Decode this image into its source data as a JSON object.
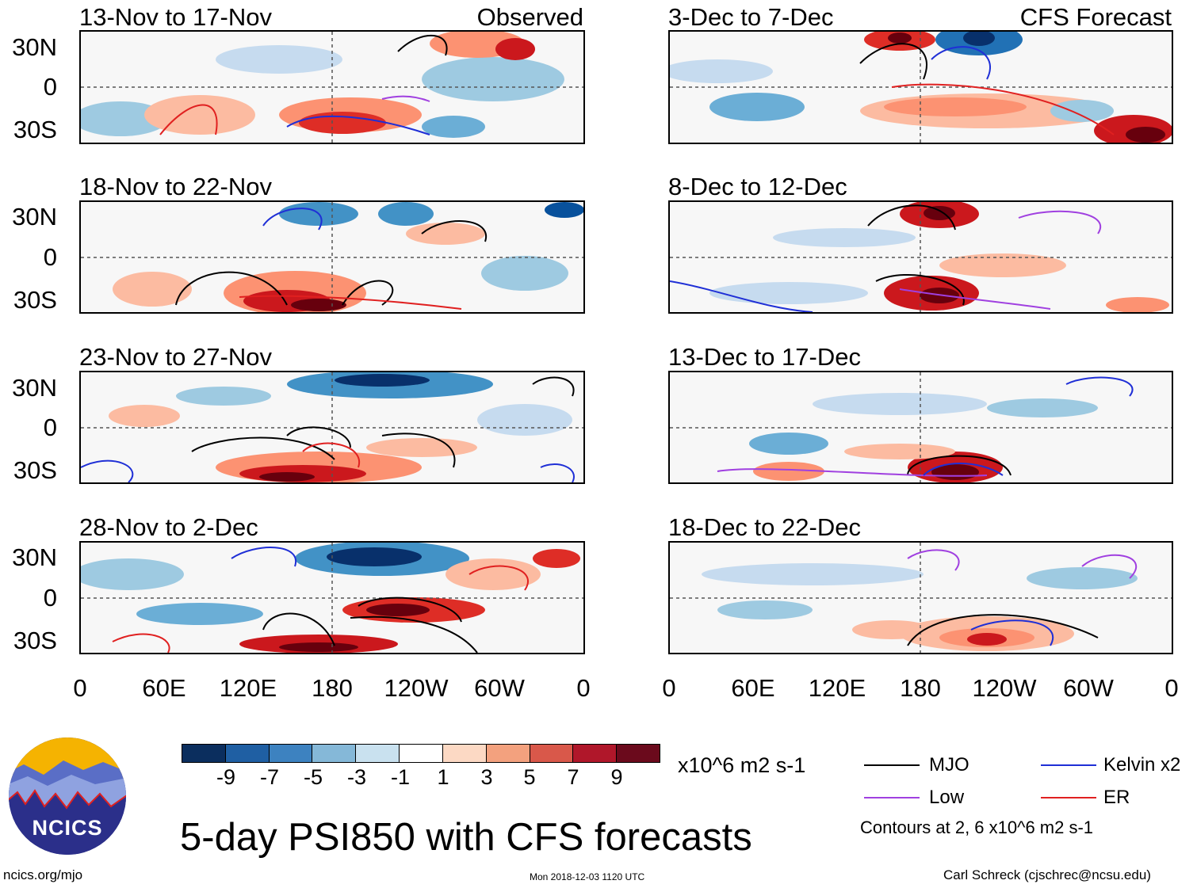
{
  "header": {
    "observed_label": "Observed",
    "forecast_label": "CFS Forecast"
  },
  "panels_left": [
    {
      "title": "13-Nov to 17-Nov"
    },
    {
      "title": "18-Nov to 22-Nov"
    },
    {
      "title": "23-Nov to 27-Nov"
    },
    {
      "title": "28-Nov to 2-Dec"
    }
  ],
  "panels_right": [
    {
      "title": "3-Dec to 7-Dec"
    },
    {
      "title": "8-Dec to 12-Dec"
    },
    {
      "title": "13-Dec to 17-Dec"
    },
    {
      "title": "18-Dec to 22-Dec"
    }
  ],
  "y_axis": {
    "ticks": [
      "30N",
      "0",
      "30S"
    ]
  },
  "x_axis": {
    "ticks": [
      "0",
      "60E",
      "120E",
      "180",
      "120W",
      "60W",
      "0"
    ]
  },
  "colorbar": {
    "labels": [
      "-9",
      "-7",
      "-5",
      "-3",
      "-1",
      "1",
      "3",
      "5",
      "7",
      "9"
    ],
    "colors": [
      "#0b2e5e",
      "#1f5fa3",
      "#3d82c0",
      "#85b8d8",
      "#c9e1ef",
      "#ffffff",
      "#fcd9c4",
      "#f3a17e",
      "#d9584a",
      "#b0172a",
      "#6b0a1c"
    ],
    "units": "x10^6 m2 s-1"
  },
  "legend": {
    "items": [
      {
        "label": "MJO",
        "color": "#000000"
      },
      {
        "label": "Kelvin x2",
        "color": "#1f2fd6"
      },
      {
        "label": "Low",
        "color": "#a040e0"
      },
      {
        "label": "ER",
        "color": "#e02020"
      }
    ],
    "contours_note": "Contours at 2, 6 x10^6 m2 s-1"
  },
  "logo": {
    "text": "NCICS"
  },
  "title": "5-day PSI850 with CFS forecasts",
  "footer": {
    "url": "ncics.org/mjo",
    "timestamp": "Mon 2018-12-03 1120 UTC",
    "credit": "Carl Schreck (cjschrec@ncsu.edu)"
  }
}
